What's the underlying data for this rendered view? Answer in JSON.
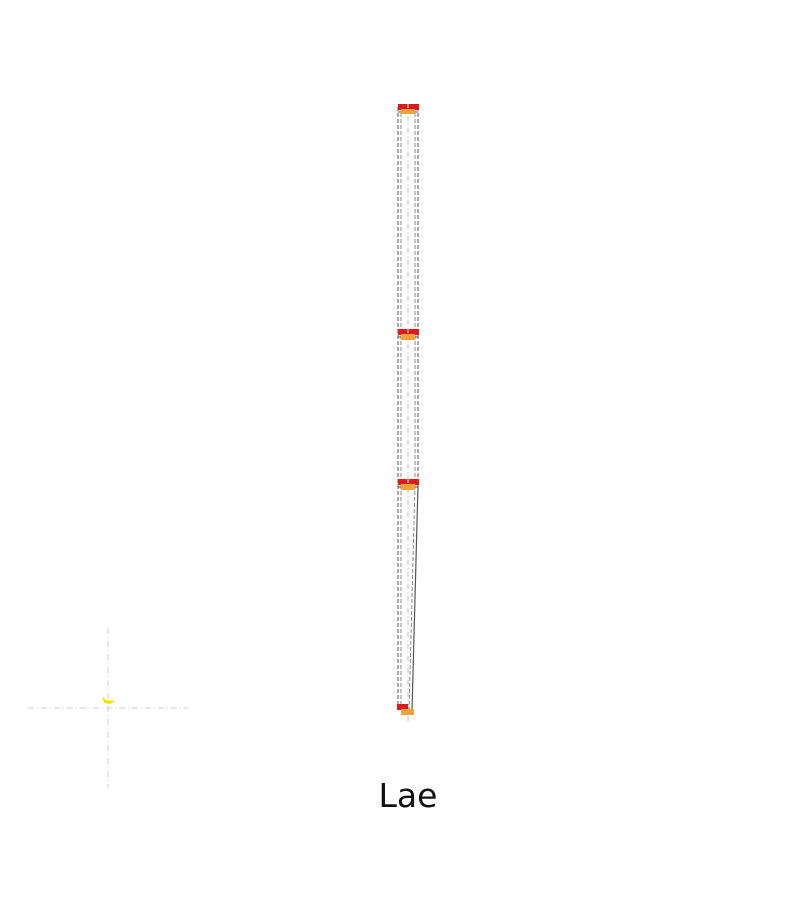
{
  "caption": "Lae",
  "colors": {
    "background": "#ffffff",
    "frame_line": "#555555",
    "center_line": "#bdbdbd",
    "axis_line": "#cfcfcf",
    "node_red": "#e11919",
    "node_orange": "#f2a33a",
    "origin_marker": "#f2e600",
    "caption_text": "#111111"
  },
  "icons": {
    "origin": "origin-axis-icon"
  },
  "frame": {
    "stories": 3,
    "support": "fixed-base"
  }
}
